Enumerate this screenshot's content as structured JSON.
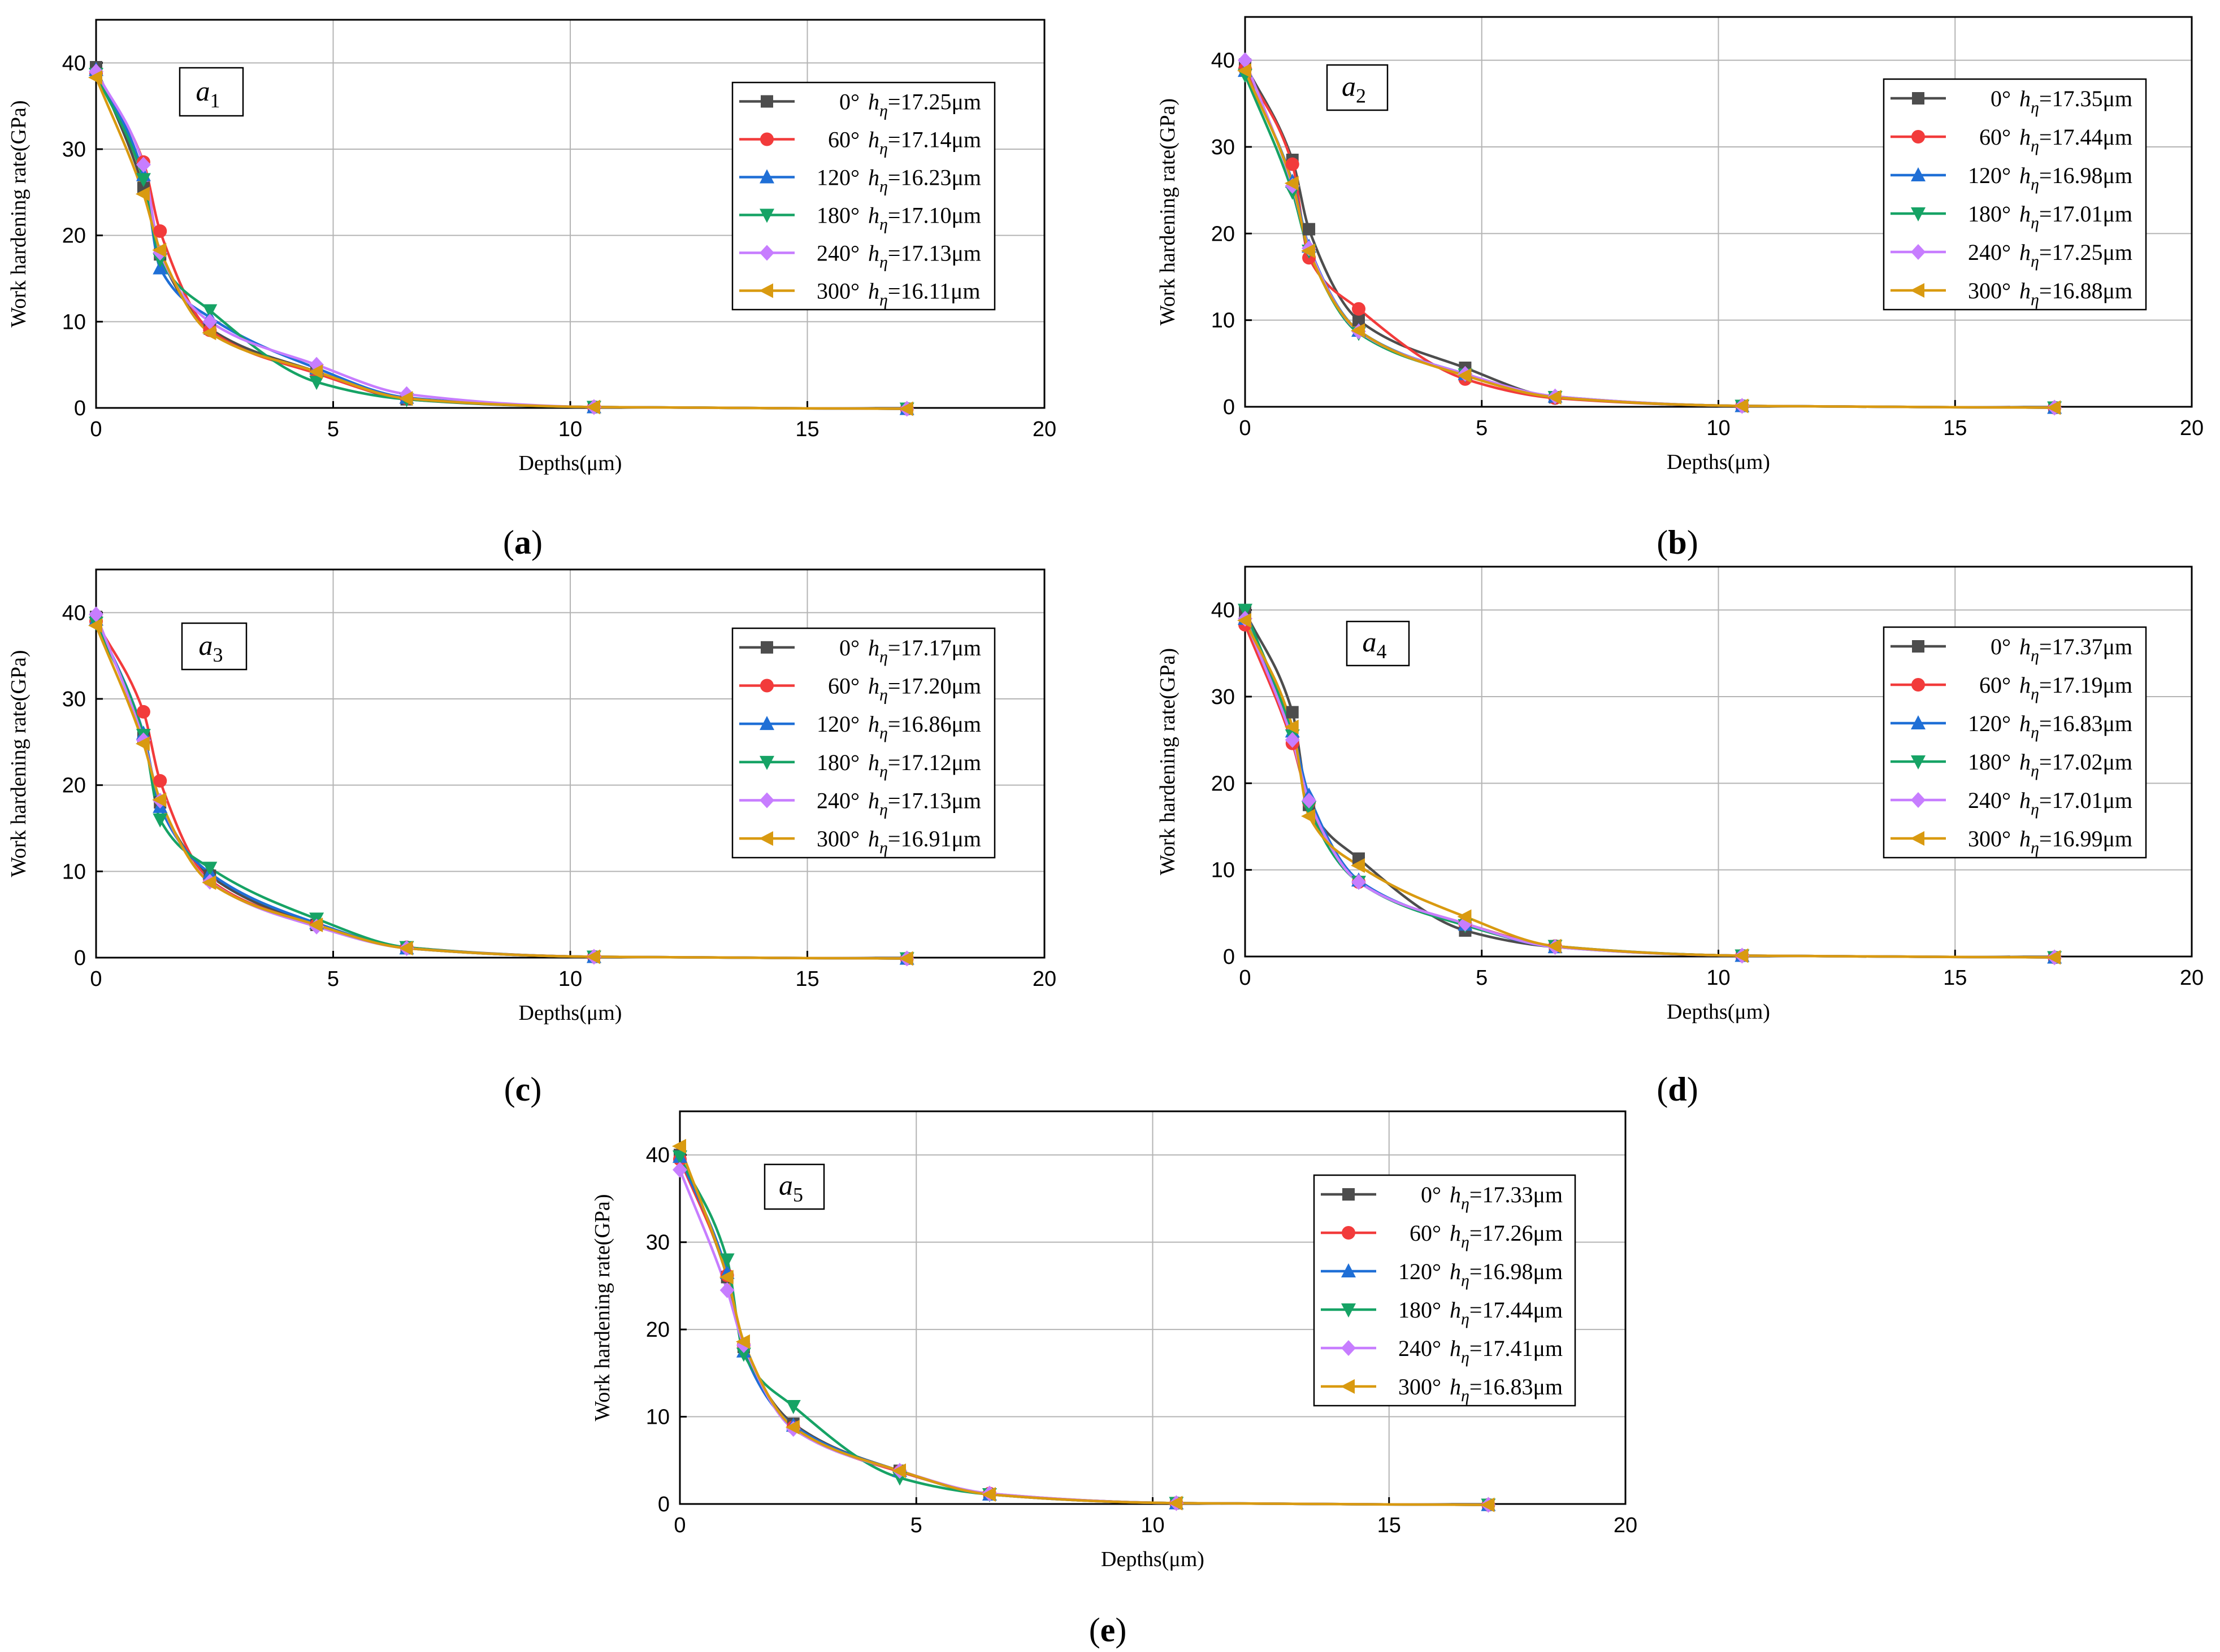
{
  "figure": {
    "panel_labels": [
      "(a)",
      "(b)",
      "(c)",
      "(d)",
      "(e)"
    ],
    "colors": {
      "0°": "#4d4d4d",
      "60°": "#f23b3b",
      "120°": "#1f6fd6",
      "180°": "#16a365",
      "240°": "#c77dff",
      "300°": "#d99a10"
    },
    "markers": {
      "0°": "square",
      "60°": "circle",
      "120°": "triangle-up",
      "180°": "triangle-down",
      "240°": "diamond",
      "300°": "triangle-left"
    }
  },
  "chart_data": [
    {
      "type": "line",
      "panel": "(a)",
      "annotation": {
        "base": "a",
        "sub": "1"
      },
      "xlabel": "Depths(μm)",
      "ylabel": "Work hardening rate(GPa)",
      "xlim": [
        0,
        20
      ],
      "ylim": [
        0,
        45
      ],
      "xticks": [
        0,
        5,
        10,
        15,
        20
      ],
      "yticks": [
        0,
        10,
        20,
        30,
        40
      ],
      "x": [
        0,
        1.0,
        1.35,
        2.4,
        4.65,
        6.55,
        10.5,
        17.1
      ],
      "series": [
        {
          "name": "0°",
          "label_angle": "0°",
          "label_h": "17.25μm",
          "values": [
            39.5,
            25.5,
            17.8,
            9.2,
            4.2,
            1.0,
            0.1,
            -0.1
          ]
        },
        {
          "name": "60°",
          "label_angle": "60°",
          "label_h": "17.14μm",
          "values": [
            38.8,
            28.5,
            20.5,
            9.0,
            4.0,
            1.1,
            0.1,
            -0.1
          ]
        },
        {
          "name": "120°",
          "label_angle": "120°",
          "label_h": "16.23μm",
          "values": [
            39.2,
            27.0,
            16.2,
            10.5,
            4.6,
            1.2,
            0.1,
            -0.1
          ]
        },
        {
          "name": "180°",
          "label_angle": "180°",
          "label_h": "17.10μm",
          "values": [
            38.7,
            26.5,
            17.2,
            11.3,
            3.0,
            1.0,
            0.1,
            -0.1
          ]
        },
        {
          "name": "240°",
          "label_angle": "240°",
          "label_h": "17.13μm",
          "values": [
            39.0,
            28.2,
            18.0,
            10.0,
            5.0,
            1.6,
            0.1,
            -0.1
          ]
        },
        {
          "name": "300°",
          "label_angle": "300°",
          "label_h": "16.11μm",
          "values": [
            38.3,
            24.8,
            18.3,
            8.7,
            4.2,
            1.1,
            0.1,
            -0.1
          ]
        }
      ]
    },
    {
      "type": "line",
      "panel": "(b)",
      "annotation": {
        "base": "a",
        "sub": "2"
      },
      "xlabel": "Depths(μm)",
      "ylabel": "Work hardening rate(GPa)",
      "xlim": [
        0,
        20
      ],
      "ylim": [
        0,
        45
      ],
      "xticks": [
        0,
        5,
        10,
        15,
        20
      ],
      "yticks": [
        0,
        10,
        20,
        30,
        40
      ],
      "x": [
        0,
        1.0,
        1.35,
        2.4,
        4.65,
        6.55,
        10.5,
        17.1
      ],
      "series": [
        {
          "name": "0°",
          "label_angle": "0°",
          "label_h": "17.35μm",
          "values": [
            39.5,
            28.5,
            20.5,
            10.0,
            4.5,
            1.1,
            0.1,
            -0.1
          ]
        },
        {
          "name": "60°",
          "label_angle": "60°",
          "label_h": "17.44μm",
          "values": [
            39.0,
            28.0,
            17.2,
            11.3,
            3.2,
            1.0,
            0.1,
            -0.1
          ]
        },
        {
          "name": "120°",
          "label_angle": "120°",
          "label_h": "16.98μm",
          "values": [
            38.8,
            26.0,
            18.5,
            8.8,
            3.8,
            1.2,
            0.1,
            -0.1
          ]
        },
        {
          "name": "180°",
          "label_angle": "180°",
          "label_h": "17.01μm",
          "values": [
            38.3,
            24.8,
            18.0,
            8.5,
            3.7,
            1.1,
            0.1,
            -0.1
          ]
        },
        {
          "name": "240°",
          "label_angle": "240°",
          "label_h": "17.25μm",
          "values": [
            40.0,
            25.5,
            18.3,
            8.7,
            3.8,
            1.2,
            0.1,
            -0.1
          ]
        },
        {
          "name": "300°",
          "label_angle": "300°",
          "label_h": "16.88μm",
          "values": [
            38.8,
            25.8,
            18.0,
            8.8,
            3.6,
            1.1,
            0.1,
            -0.1
          ]
        }
      ]
    },
    {
      "type": "line",
      "panel": "(c)",
      "annotation": {
        "base": "a",
        "sub": "3"
      },
      "xlabel": "Depths(μm)",
      "ylabel": "Work hardening rate(GPa)",
      "xlim": [
        0,
        20
      ],
      "ylim": [
        0,
        45
      ],
      "xticks": [
        0,
        5,
        10,
        15,
        20
      ],
      "yticks": [
        0,
        10,
        20,
        30,
        40
      ],
      "x": [
        0,
        1.0,
        1.35,
        2.4,
        4.65,
        6.55,
        10.5,
        17.1
      ],
      "series": [
        {
          "name": "0°",
          "label_angle": "0°",
          "label_h": "17.17μm",
          "values": [
            39.5,
            25.5,
            18.0,
            9.5,
            3.8,
            1.1,
            0.1,
            -0.1
          ]
        },
        {
          "name": "60°",
          "label_angle": "60°",
          "label_h": "17.20μm",
          "values": [
            39.0,
            28.5,
            20.5,
            9.0,
            3.8,
            1.2,
            0.1,
            -0.1
          ]
        },
        {
          "name": "120°",
          "label_angle": "120°",
          "label_h": "16.86μm",
          "values": [
            39.2,
            26.0,
            17.5,
            9.8,
            4.0,
            1.1,
            0.1,
            -0.1
          ]
        },
        {
          "name": "180°",
          "label_angle": "180°",
          "label_h": "17.12μm",
          "values": [
            38.8,
            25.8,
            16.0,
            10.4,
            4.5,
            1.2,
            0.1,
            -0.1
          ]
        },
        {
          "name": "240°",
          "label_angle": "240°",
          "label_h": "17.13μm",
          "values": [
            39.8,
            25.2,
            18.2,
            8.8,
            3.6,
            1.1,
            0.1,
            -0.1
          ]
        },
        {
          "name": "300°",
          "label_angle": "300°",
          "label_h": "16.91μm",
          "values": [
            38.5,
            24.8,
            18.3,
            8.7,
            3.8,
            1.1,
            0.1,
            -0.1
          ]
        }
      ]
    },
    {
      "type": "line",
      "panel": "(d)",
      "annotation": {
        "base": "a",
        "sub": "4"
      },
      "xlabel": "Depths(μm)",
      "ylabel": "Work hardening rate(GPa)",
      "xlim": [
        0,
        20
      ],
      "ylim": [
        0,
        45
      ],
      "xticks": [
        0,
        5,
        10,
        15,
        20
      ],
      "yticks": [
        0,
        10,
        20,
        30,
        40
      ],
      "x": [
        0,
        1.0,
        1.35,
        2.4,
        4.65,
        6.55,
        10.5,
        17.1
      ],
      "series": [
        {
          "name": "0°",
          "label_angle": "0°",
          "label_h": "17.37μm",
          "values": [
            39.8,
            28.2,
            17.5,
            11.3,
            3.0,
            1.1,
            0.1,
            -0.1
          ]
        },
        {
          "name": "60°",
          "label_angle": "60°",
          "label_h": "17.19μm",
          "values": [
            38.3,
            24.6,
            17.8,
            8.6,
            3.8,
            1.2,
            0.1,
            -0.1
          ]
        },
        {
          "name": "120°",
          "label_angle": "120°",
          "label_h": "16.83μm",
          "values": [
            39.0,
            26.0,
            18.6,
            8.8,
            3.7,
            1.1,
            0.1,
            -0.1
          ]
        },
        {
          "name": "180°",
          "label_angle": "180°",
          "label_h": "17.02μm",
          "values": [
            40.0,
            25.5,
            17.2,
            8.6,
            3.6,
            1.2,
            0.1,
            -0.1
          ]
        },
        {
          "name": "240°",
          "label_angle": "240°",
          "label_h": "17.01μm",
          "values": [
            39.0,
            25.0,
            18.0,
            8.6,
            3.8,
            1.1,
            0.1,
            -0.1
          ]
        },
        {
          "name": "300°",
          "label_angle": "300°",
          "label_h": "16.99μm",
          "values": [
            38.8,
            26.5,
            16.2,
            10.5,
            4.6,
            1.2,
            0.1,
            -0.1
          ]
        }
      ]
    },
    {
      "type": "line",
      "panel": "(e)",
      "annotation": {
        "base": "a",
        "sub": "5"
      },
      "xlabel": "Depths(μm)",
      "ylabel": "Work hardening rate(GPa)",
      "xlim": [
        0,
        20
      ],
      "ylim": [
        0,
        45
      ],
      "xticks": [
        0,
        5,
        10,
        15,
        20
      ],
      "yticks": [
        0,
        10,
        20,
        30,
        40
      ],
      "x": [
        0,
        1.0,
        1.35,
        2.4,
        4.65,
        6.55,
        10.5,
        17.1
      ],
      "series": [
        {
          "name": "0°",
          "label_angle": "0°",
          "label_h": "17.33μm",
          "values": [
            40.0,
            26.0,
            18.0,
            9.2,
            3.8,
            1.1,
            0.1,
            -0.1
          ]
        },
        {
          "name": "60°",
          "label_angle": "60°",
          "label_h": "17.26μm",
          "values": [
            39.5,
            26.2,
            18.2,
            8.8,
            3.7,
            1.2,
            0.1,
            -0.1
          ]
        },
        {
          "name": "120°",
          "label_angle": "120°",
          "label_h": "16.98μm",
          "values": [
            39.8,
            26.5,
            17.5,
            9.0,
            3.8,
            1.1,
            0.1,
            -0.1
          ]
        },
        {
          "name": "180°",
          "label_angle": "180°",
          "label_h": "17.44μm",
          "values": [
            39.8,
            28.0,
            17.2,
            11.2,
            3.0,
            1.1,
            0.1,
            -0.1
          ]
        },
        {
          "name": "240°",
          "label_angle": "240°",
          "label_h": "17.41μm",
          "values": [
            38.3,
            24.5,
            18.2,
            8.6,
            3.8,
            1.2,
            0.1,
            -0.1
          ]
        },
        {
          "name": "300°",
          "label_angle": "300°",
          "label_h": "16.83μm",
          "values": [
            41.0,
            26.0,
            18.6,
            8.8,
            3.8,
            1.1,
            0.1,
            -0.1
          ]
        }
      ]
    }
  ]
}
